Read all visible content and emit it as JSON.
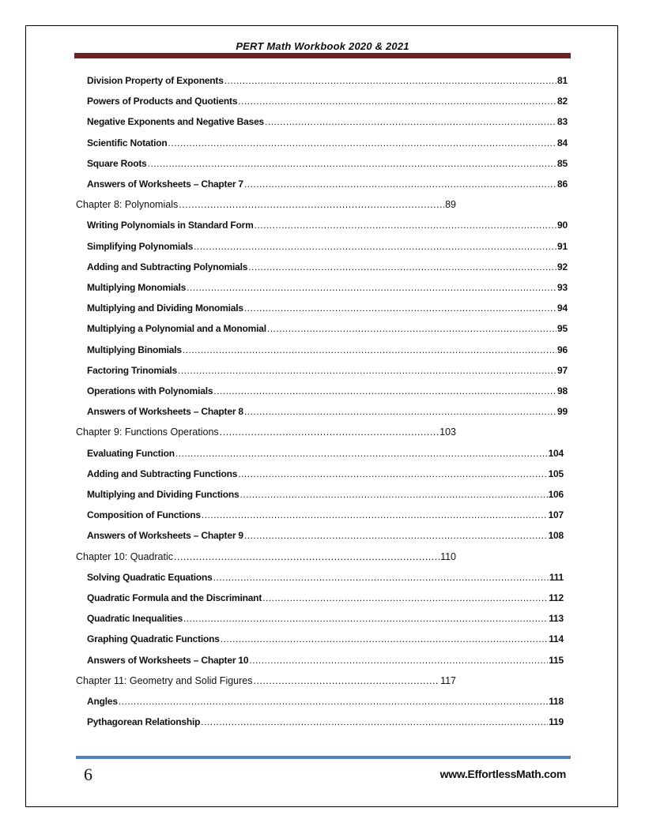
{
  "header": {
    "title": "PERT Math Workbook 2020 & 2021",
    "bar_color": "#6b2322"
  },
  "toc": [
    {
      "level": "sub",
      "title": "Division Property of Exponents",
      "page": "81"
    },
    {
      "level": "sub",
      "title": "Powers of Products and Quotients",
      "page": "82"
    },
    {
      "level": "sub",
      "title": "Negative Exponents and Negative Bases",
      "page": "83"
    },
    {
      "level": "sub",
      "title": "Scientific Notation",
      "page": "84"
    },
    {
      "level": "sub",
      "title": "Square Roots",
      "page": "85"
    },
    {
      "level": "sub",
      "title": "Answers of Worksheets – Chapter 7",
      "page": "86"
    },
    {
      "level": "chapter",
      "title": "Chapter 8:  Polynomials",
      "page": "89"
    },
    {
      "level": "sub",
      "title": "Writing Polynomials in Standard Form",
      "page": "90"
    },
    {
      "level": "sub",
      "title": "Simplifying Polynomials",
      "page": "91"
    },
    {
      "level": "sub",
      "title": "Adding and Subtracting Polynomials",
      "page": "92"
    },
    {
      "level": "sub",
      "title": "Multiplying Monomials",
      "page": "93"
    },
    {
      "level": "sub",
      "title": "Multiplying and Dividing Monomials",
      "page": "94"
    },
    {
      "level": "sub",
      "title": "Multiplying a Polynomial and a Monomial",
      "page": "95"
    },
    {
      "level": "sub",
      "title": "Multiplying Binomials",
      "page": "96"
    },
    {
      "level": "sub",
      "title": "Factoring Trinomials",
      "page": "97"
    },
    {
      "level": "sub",
      "title": "Operations with Polynomials",
      "page": "98"
    },
    {
      "level": "sub",
      "title": "Answers of Worksheets – Chapter 8",
      "page": "99"
    },
    {
      "level": "chapter",
      "title": "Chapter 9:  Functions Operations",
      "page": "103"
    },
    {
      "level": "sub",
      "title": "Evaluating Function",
      "page": "104"
    },
    {
      "level": "sub",
      "title": "Adding and Subtracting Functions",
      "page": "105"
    },
    {
      "level": "sub",
      "title": "Multiplying and Dividing Functions",
      "page": "106"
    },
    {
      "level": "sub",
      "title": "Composition of Functions",
      "page": "107"
    },
    {
      "level": "sub",
      "title": "Answers of Worksheets – Chapter 9",
      "page": "108"
    },
    {
      "level": "chapter",
      "title": "Chapter 10:  Quadratic",
      "page": "110"
    },
    {
      "level": "sub",
      "title": "Solving Quadratic Equations",
      "page": "111"
    },
    {
      "level": "sub",
      "title": "Quadratic Formula and the Discriminant",
      "page": "112"
    },
    {
      "level": "sub",
      "title": "Quadratic Inequalities",
      "page": "113"
    },
    {
      "level": "sub",
      "title": "Graphing Quadratic Functions",
      "page": "114"
    },
    {
      "level": "sub",
      "title": "Answers of Worksheets – Chapter 10",
      "page": "115"
    },
    {
      "level": "chapter",
      "title": "Chapter 11: Geometry and Solid Figures",
      "page": "117"
    },
    {
      "level": "sub",
      "title": "Angles",
      "page": "118"
    },
    {
      "level": "sub",
      "title": "Pythagorean Relationship",
      "page": "119"
    }
  ],
  "footer": {
    "page_number": "6",
    "website": "www.EffortlessMath.com",
    "bar_color": "#4f81bd"
  }
}
